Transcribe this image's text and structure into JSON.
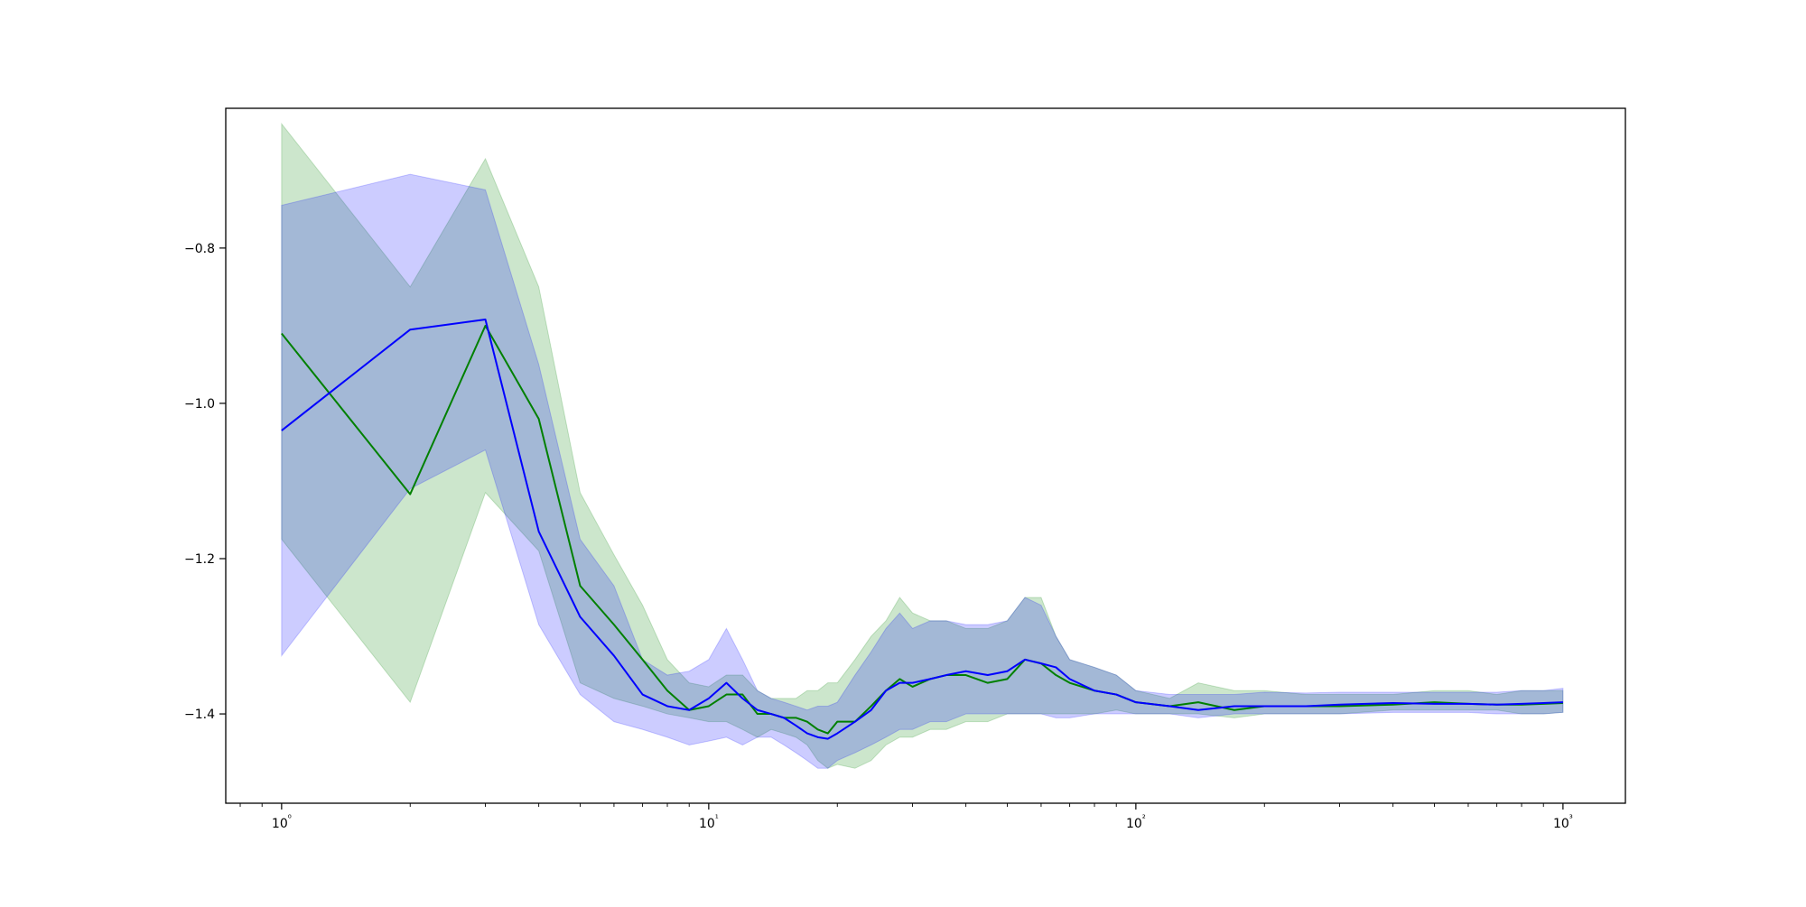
{
  "chart_data": {
    "type": "line",
    "title": "",
    "xlabel": "",
    "ylabel": "",
    "xscale": "log",
    "xlim": [
      0.74,
      1400
    ],
    "ylim": [
      -1.515,
      -0.62
    ],
    "grid": false,
    "legend": "none",
    "xticks": [
      {
        "value": 1,
        "label": "10⁰"
      },
      {
        "value": 10,
        "label": "10¹"
      },
      {
        "value": 100,
        "label": "10²"
      },
      {
        "value": 1000,
        "label": "10³"
      }
    ],
    "yticks": [
      {
        "value": -0.8,
        "label": "−0.8"
      },
      {
        "value": -1.0,
        "label": "−1.0"
      },
      {
        "value": -1.2,
        "label": "−1.2"
      },
      {
        "value": -1.4,
        "label": "−1.4"
      }
    ],
    "series": [
      {
        "color": "#008000",
        "band_color": "#008000",
        "band_opacity": 0.2,
        "x": [
          1,
          2,
          3,
          4,
          5,
          6,
          7,
          8,
          9,
          10,
          11,
          12,
          13,
          14,
          15,
          16,
          17,
          18,
          19,
          20,
          22,
          24,
          26,
          28,
          30,
          33,
          36,
          40,
          45,
          50,
          55,
          60,
          65,
          70,
          80,
          90,
          100,
          120,
          140,
          170,
          200,
          250,
          300,
          400,
          500,
          600,
          700,
          800,
          900,
          1000
        ],
        "y": [
          -0.91,
          -1.117,
          -0.9,
          -1.02,
          -1.235,
          -1.285,
          -1.33,
          -1.37,
          -1.395,
          -1.39,
          -1.375,
          -1.375,
          -1.4,
          -1.4,
          -1.405,
          -1.405,
          -1.41,
          -1.42,
          -1.425,
          -1.41,
          -1.41,
          -1.39,
          -1.37,
          -1.355,
          -1.365,
          -1.355,
          -1.35,
          -1.35,
          -1.36,
          -1.355,
          -1.33,
          -1.335,
          -1.35,
          -1.36,
          -1.37,
          -1.375,
          -1.385,
          -1.39,
          -1.385,
          -1.395,
          -1.39,
          -1.39,
          -1.39,
          -1.388,
          -1.385,
          -1.387,
          -1.388,
          -1.388,
          -1.387,
          -1.386
        ],
        "lower": [
          -1.175,
          -1.385,
          -1.115,
          -1.19,
          -1.36,
          -1.38,
          -1.39,
          -1.4,
          -1.405,
          -1.41,
          -1.41,
          -1.42,
          -1.43,
          -1.42,
          -1.425,
          -1.43,
          -1.44,
          -1.46,
          -1.47,
          -1.465,
          -1.47,
          -1.46,
          -1.44,
          -1.43,
          -1.43,
          -1.42,
          -1.42,
          -1.41,
          -1.41,
          -1.4,
          -1.4,
          -1.4,
          -1.4,
          -1.4,
          -1.4,
          -1.395,
          -1.4,
          -1.4,
          -1.4,
          -1.405,
          -1.4,
          -1.4,
          -1.4,
          -1.395,
          -1.395,
          -1.395,
          -1.395,
          -1.4,
          -1.4,
          -1.398
        ],
        "upper": [
          -0.64,
          -0.85,
          -0.685,
          -0.85,
          -1.115,
          -1.195,
          -1.26,
          -1.33,
          -1.36,
          -1.365,
          -1.35,
          -1.35,
          -1.37,
          -1.38,
          -1.38,
          -1.38,
          -1.37,
          -1.37,
          -1.36,
          -1.36,
          -1.33,
          -1.3,
          -1.28,
          -1.25,
          -1.27,
          -1.28,
          -1.28,
          -1.29,
          -1.29,
          -1.28,
          -1.25,
          -1.25,
          -1.3,
          -1.33,
          -1.34,
          -1.35,
          -1.37,
          -1.38,
          -1.36,
          -1.37,
          -1.37,
          -1.375,
          -1.375,
          -1.375,
          -1.37,
          -1.37,
          -1.375,
          -1.37,
          -1.37,
          -1.37
        ]
      },
      {
        "color": "#0000ff",
        "band_color": "#0000ff",
        "band_opacity": 0.2,
        "x": [
          1,
          2,
          3,
          4,
          5,
          6,
          7,
          8,
          9,
          10,
          11,
          12,
          13,
          14,
          15,
          16,
          17,
          18,
          19,
          20,
          22,
          24,
          26,
          28,
          30,
          33,
          36,
          40,
          45,
          50,
          55,
          60,
          65,
          70,
          80,
          90,
          100,
          120,
          140,
          170,
          200,
          250,
          300,
          400,
          500,
          600,
          700,
          800,
          900,
          1000
        ],
        "y": [
          -1.035,
          -0.905,
          -0.892,
          -1.165,
          -1.275,
          -1.325,
          -1.375,
          -1.39,
          -1.395,
          -1.38,
          -1.36,
          -1.38,
          -1.395,
          -1.4,
          -1.405,
          -1.415,
          -1.425,
          -1.43,
          -1.432,
          -1.425,
          -1.41,
          -1.395,
          -1.37,
          -1.36,
          -1.36,
          -1.355,
          -1.35,
          -1.345,
          -1.35,
          -1.345,
          -1.33,
          -1.335,
          -1.34,
          -1.355,
          -1.37,
          -1.375,
          -1.385,
          -1.39,
          -1.395,
          -1.39,
          -1.39,
          -1.39,
          -1.388,
          -1.386,
          -1.387,
          -1.387,
          -1.388,
          -1.387,
          -1.386,
          -1.385
        ],
        "lower": [
          -1.325,
          -1.11,
          -1.06,
          -1.285,
          -1.375,
          -1.41,
          -1.42,
          -1.43,
          -1.44,
          -1.435,
          -1.43,
          -1.44,
          -1.43,
          -1.43,
          -1.44,
          -1.45,
          -1.46,
          -1.47,
          -1.47,
          -1.46,
          -1.45,
          -1.44,
          -1.43,
          -1.42,
          -1.42,
          -1.41,
          -1.41,
          -1.4,
          -1.4,
          -1.4,
          -1.4,
          -1.4,
          -1.405,
          -1.405,
          -1.4,
          -1.4,
          -1.4,
          -1.4,
          -1.405,
          -1.4,
          -1.4,
          -1.4,
          -1.4,
          -1.398,
          -1.398,
          -1.398,
          -1.4,
          -1.4,
          -1.4,
          -1.398
        ],
        "upper": [
          -0.745,
          -0.705,
          -0.725,
          -0.95,
          -1.175,
          -1.235,
          -1.33,
          -1.35,
          -1.345,
          -1.33,
          -1.29,
          -1.33,
          -1.37,
          -1.38,
          -1.385,
          -1.39,
          -1.395,
          -1.39,
          -1.39,
          -1.385,
          -1.35,
          -1.32,
          -1.29,
          -1.27,
          -1.29,
          -1.28,
          -1.28,
          -1.285,
          -1.285,
          -1.28,
          -1.25,
          -1.26,
          -1.3,
          -1.33,
          -1.34,
          -1.35,
          -1.37,
          -1.375,
          -1.375,
          -1.375,
          -1.372,
          -1.373,
          -1.372,
          -1.372,
          -1.372,
          -1.372,
          -1.372,
          -1.37,
          -1.37,
          -1.367
        ]
      }
    ]
  }
}
